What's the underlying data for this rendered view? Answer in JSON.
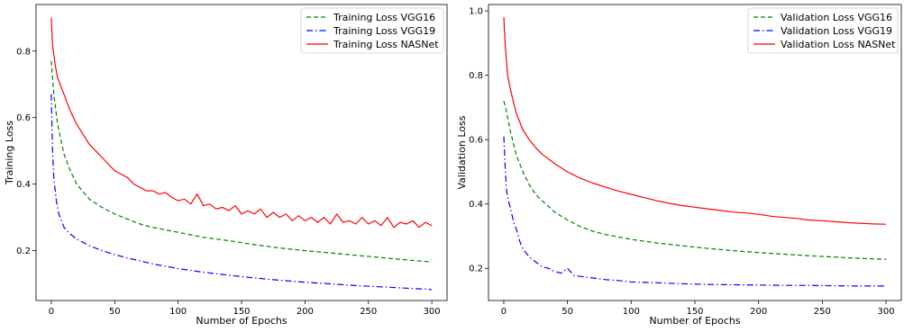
{
  "chart_data": [
    {
      "type": "line",
      "xlabel": "Number of Epochs",
      "ylabel": "Training Loss",
      "xlim": [
        -12,
        312
      ],
      "ylim": [
        0.05,
        0.94
      ],
      "xticks": [
        0,
        50,
        100,
        150,
        200,
        250,
        300
      ],
      "yticks": [
        0.2,
        0.4,
        0.6,
        0.8
      ],
      "ytick_labels": [
        "0.2",
        "0.4",
        "0.6",
        "0.8"
      ],
      "grid": false,
      "legend_position": "top-right",
      "series": [
        {
          "name": "Training Loss VGG16",
          "color": "#008000",
          "style": "dashed",
          "x": [
            0,
            2,
            5,
            10,
            15,
            20,
            30,
            40,
            50,
            60,
            70,
            80,
            100,
            120,
            140,
            160,
            180,
            200,
            220,
            240,
            260,
            280,
            300
          ],
          "y": [
            0.77,
            0.67,
            0.58,
            0.49,
            0.44,
            0.4,
            0.355,
            0.33,
            0.31,
            0.295,
            0.28,
            0.27,
            0.255,
            0.24,
            0.23,
            0.218,
            0.208,
            0.2,
            0.193,
            0.186,
            0.179,
            0.172,
            0.166
          ]
        },
        {
          "name": "Training Loss VGG19",
          "color": "#0000ff",
          "style": "dashdot",
          "x": [
            0,
            1,
            2,
            4,
            6,
            10,
            15,
            20,
            30,
            40,
            50,
            60,
            80,
            100,
            120,
            140,
            160,
            180,
            200,
            220,
            240,
            260,
            280,
            300
          ],
          "y": [
            0.67,
            0.5,
            0.42,
            0.35,
            0.31,
            0.27,
            0.25,
            0.235,
            0.215,
            0.2,
            0.188,
            0.178,
            0.16,
            0.146,
            0.135,
            0.126,
            0.118,
            0.111,
            0.105,
            0.1,
            0.095,
            0.091,
            0.087,
            0.083
          ]
        },
        {
          "name": "Training Loss NASNet",
          "color": "#ff0000",
          "style": "solid",
          "x": [
            0,
            1,
            2,
            3,
            5,
            8,
            10,
            15,
            20,
            25,
            30,
            35,
            40,
            45,
            50,
            55,
            60,
            65,
            70,
            75,
            80,
            85,
            90,
            95,
            100,
            105,
            110,
            115,
            120,
            125,
            130,
            135,
            140,
            145,
            150,
            155,
            160,
            165,
            170,
            175,
            180,
            185,
            190,
            195,
            200,
            205,
            210,
            215,
            220,
            225,
            230,
            235,
            240,
            245,
            250,
            255,
            260,
            265,
            270,
            275,
            280,
            285,
            290,
            295,
            300
          ],
          "y": [
            0.9,
            0.82,
            0.79,
            0.76,
            0.72,
            0.69,
            0.67,
            0.62,
            0.58,
            0.55,
            0.52,
            0.5,
            0.48,
            0.46,
            0.44,
            0.43,
            0.42,
            0.4,
            0.39,
            0.38,
            0.38,
            0.37,
            0.375,
            0.36,
            0.35,
            0.355,
            0.34,
            0.37,
            0.335,
            0.34,
            0.325,
            0.33,
            0.32,
            0.335,
            0.31,
            0.32,
            0.31,
            0.325,
            0.3,
            0.315,
            0.3,
            0.31,
            0.29,
            0.305,
            0.29,
            0.3,
            0.285,
            0.3,
            0.28,
            0.31,
            0.285,
            0.29,
            0.28,
            0.3,
            0.28,
            0.29,
            0.275,
            0.3,
            0.27,
            0.285,
            0.28,
            0.29,
            0.27,
            0.285,
            0.275
          ]
        }
      ]
    },
    {
      "type": "line",
      "xlabel": "Number of Epochs",
      "ylabel": "Validation Loss",
      "xlim": [
        -12,
        312
      ],
      "ylim": [
        0.1,
        1.02
      ],
      "xticks": [
        0,
        50,
        100,
        150,
        200,
        250,
        300
      ],
      "yticks": [
        0.2,
        0.4,
        0.6,
        0.8,
        1.0
      ],
      "ytick_labels": [
        "0.2",
        "0.4",
        "0.6",
        "0.8",
        "1.0"
      ],
      "grid": false,
      "legend_position": "top-right",
      "series": [
        {
          "name": "Validation Loss VGG16",
          "color": "#008000",
          "style": "dashed",
          "x": [
            0,
            2,
            5,
            8,
            10,
            15,
            20,
            25,
            30,
            40,
            50,
            60,
            70,
            80,
            100,
            120,
            140,
            160,
            180,
            200,
            220,
            240,
            260,
            280,
            300
          ],
          "y": [
            0.72,
            0.69,
            0.63,
            0.58,
            0.55,
            0.5,
            0.46,
            0.43,
            0.41,
            0.375,
            0.35,
            0.33,
            0.315,
            0.305,
            0.29,
            0.279,
            0.27,
            0.262,
            0.255,
            0.249,
            0.244,
            0.239,
            0.235,
            0.231,
            0.228
          ]
        },
        {
          "name": "Validation Loss VGG19",
          "color": "#0000ff",
          "style": "dashdot",
          "x": [
            0,
            1,
            2,
            3,
            5,
            8,
            10,
            12,
            15,
            20,
            25,
            30,
            35,
            40,
            45,
            50,
            55,
            60,
            70,
            80,
            90,
            100,
            120,
            140,
            160,
            180,
            200,
            220,
            240,
            260,
            280,
            300
          ],
          "y": [
            0.61,
            0.52,
            0.45,
            0.42,
            0.39,
            0.34,
            0.32,
            0.29,
            0.26,
            0.235,
            0.22,
            0.205,
            0.2,
            0.19,
            0.185,
            0.2,
            0.178,
            0.175,
            0.17,
            0.165,
            0.162,
            0.158,
            0.155,
            0.152,
            0.15,
            0.149,
            0.148,
            0.147,
            0.147,
            0.146,
            0.145,
            0.145
          ]
        },
        {
          "name": "Validation Loss NASNet",
          "color": "#ff0000",
          "style": "solid",
          "x": [
            0,
            1,
            2,
            3,
            5,
            8,
            10,
            15,
            20,
            25,
            30,
            40,
            50,
            60,
            70,
            80,
            90,
            100,
            110,
            120,
            130,
            140,
            150,
            160,
            170,
            180,
            190,
            200,
            210,
            220,
            230,
            240,
            250,
            260,
            270,
            280,
            290,
            300
          ],
          "y": [
            0.98,
            0.9,
            0.85,
            0.8,
            0.76,
            0.71,
            0.68,
            0.63,
            0.6,
            0.575,
            0.555,
            0.525,
            0.5,
            0.48,
            0.465,
            0.452,
            0.44,
            0.43,
            0.42,
            0.41,
            0.402,
            0.395,
            0.39,
            0.385,
            0.38,
            0.375,
            0.372,
            0.368,
            0.362,
            0.358,
            0.355,
            0.35,
            0.348,
            0.345,
            0.342,
            0.34,
            0.338,
            0.337
          ]
        }
      ]
    }
  ]
}
